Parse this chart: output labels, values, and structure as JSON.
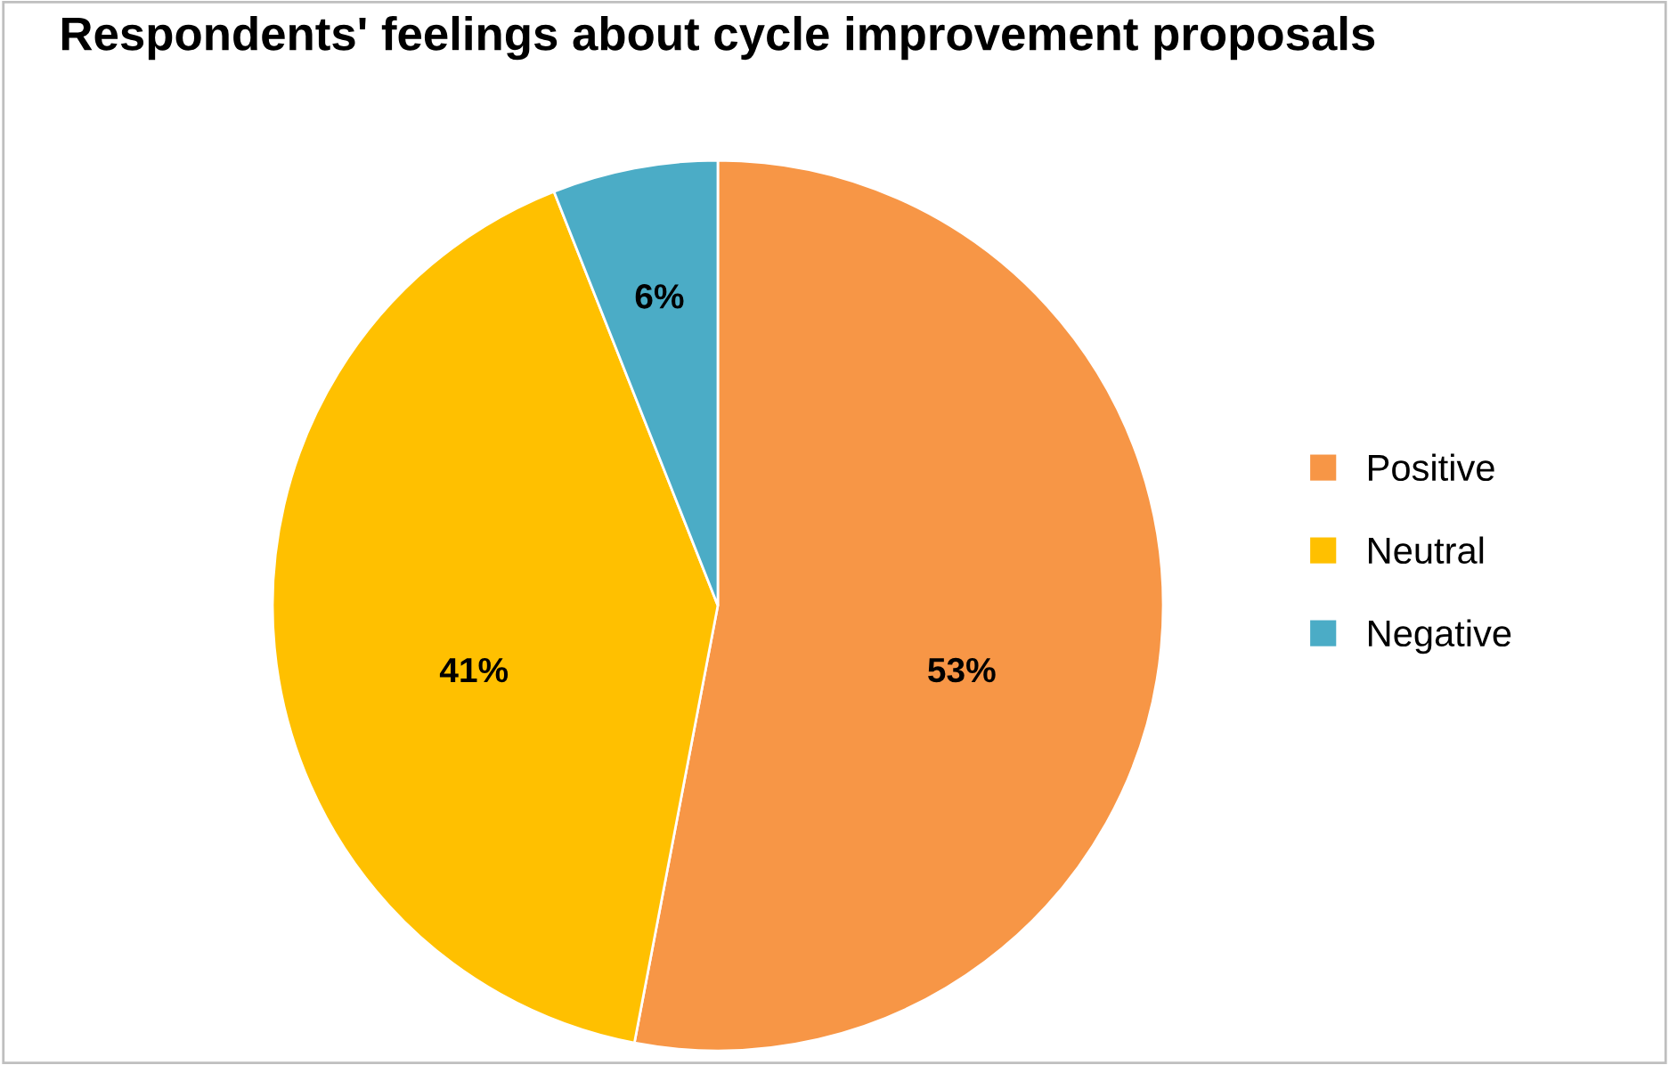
{
  "chart_data": {
    "type": "pie",
    "title": "Respondents' feelings about cycle improvement proposals",
    "categories": [
      "Positive",
      "Neutral",
      "Negative"
    ],
    "values": [
      53,
      41,
      6
    ],
    "colors": [
      "#f79646",
      "#ffc000",
      "#4bacc6"
    ],
    "value_labels": [
      "53%",
      "41%",
      "6%"
    ],
    "legend": "right"
  }
}
